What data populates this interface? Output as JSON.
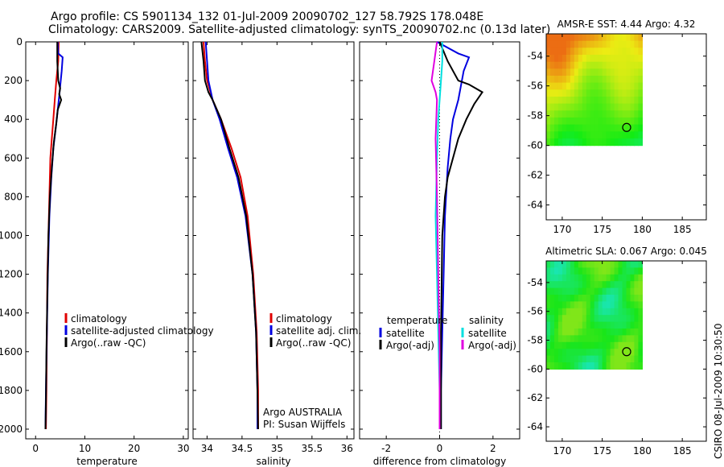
{
  "header": {
    "line1": "Argo profile: CS 5901134_132 01-Jul-2009 20090702_127 58.792S 178.048E",
    "line2": "Climatology: CARS2009. Satellite-adjusted climatology: synTS_20090702.nc (0.13d later)"
  },
  "footer": {
    "stamp": "CSIRO 08-Jul-2009 10:30:50",
    "credit_org": "Argo AUSTRALIA",
    "credit_pi": "PI: Susan Wijffels"
  },
  "colors": {
    "climatology": "#e00000",
    "satellite": "#0000e0",
    "argo": "#000000",
    "salinity_sat": "#00e0e0",
    "salinity_argo": "#e000e0"
  },
  "chart_data": [
    {
      "type": "line",
      "id": "temperature-panel",
      "xlabel": "temperature",
      "ylabel": "",
      "xlim": [
        -2,
        31
      ],
      "ylim": [
        2050,
        0
      ],
      "xticks": [
        0,
        10,
        20,
        30
      ],
      "yticks": [
        0,
        200,
        400,
        600,
        800,
        1000,
        1200,
        1400,
        1600,
        1800,
        2000
      ],
      "legend": [
        "climatology",
        "satellite-adjusted climatology",
        "Argo(..raw -QC)"
      ],
      "series": [
        {
          "name": "climatology",
          "color": "#e00000",
          "x": [
            4.7,
            4.6,
            4.2,
            3.9,
            3.6,
            3.3,
            3.0,
            2.8,
            2.6,
            2.4,
            2.3,
            2.2,
            2.1
          ],
          "y": [
            0,
            100,
            200,
            300,
            400,
            500,
            600,
            800,
            1000,
            1200,
            1500,
            1800,
            2000
          ]
        },
        {
          "name": "satellite-adjusted climatology",
          "color": "#0000e0",
          "x": [
            4.5,
            4.6,
            5.5,
            5.3,
            4.8,
            4.2,
            3.6,
            3.2,
            2.8,
            2.5,
            2.3,
            2.1,
            2.0
          ],
          "y": [
            0,
            60,
            80,
            150,
            280,
            420,
            550,
            700,
            900,
            1200,
            1500,
            1800,
            2000
          ]
        },
        {
          "name": "Argo(..raw -QC)",
          "color": "#000000",
          "x": [
            4.4,
            4.4,
            4.6,
            5.0,
            4.8,
            5.2,
            4.5,
            4.2,
            3.7,
            3.3,
            2.9,
            2.6,
            2.4,
            2.2,
            2.1,
            2.0
          ],
          "y": [
            0,
            100,
            200,
            240,
            270,
            300,
            350,
            420,
            520,
            650,
            800,
            1000,
            1300,
            1600,
            1850,
            2000
          ]
        }
      ]
    },
    {
      "type": "line",
      "id": "salinity-panel",
      "xlabel": "salinity",
      "ylabel": "",
      "xlim": [
        33.8,
        36.1
      ],
      "ylim": [
        2050,
        0
      ],
      "xticks": [
        34,
        34.5,
        35,
        35.5,
        36
      ],
      "legend": [
        "climatology",
        "satellite adj. clim.",
        "Argo(..raw -QC)"
      ],
      "series": [
        {
          "name": "climatology",
          "color": "#e00000",
          "x": [
            33.95,
            33.97,
            34.0,
            34.08,
            34.2,
            34.35,
            34.48,
            34.58,
            34.66,
            34.71,
            34.73,
            34.73
          ],
          "y": [
            0,
            100,
            200,
            300,
            400,
            550,
            700,
            900,
            1200,
            1500,
            1800,
            2000
          ]
        },
        {
          "name": "satellite adj. clim.",
          "color": "#0000e0",
          "x": [
            33.98,
            34.0,
            34.02,
            34.08,
            34.18,
            34.3,
            34.43,
            34.55,
            34.65,
            34.7,
            34.72,
            34.72
          ],
          "y": [
            0,
            100,
            200,
            300,
            400,
            550,
            700,
            900,
            1200,
            1500,
            1800,
            2000
          ]
        },
        {
          "name": "Argo(..raw -QC)",
          "color": "#000000",
          "x": [
            33.92,
            33.95,
            33.97,
            34.02,
            34.08,
            34.2,
            34.32,
            34.45,
            34.56,
            34.65,
            34.7,
            34.72,
            34.73
          ],
          "y": [
            0,
            100,
            200,
            260,
            300,
            400,
            550,
            700,
            900,
            1200,
            1500,
            1800,
            2000
          ]
        }
      ]
    },
    {
      "type": "line",
      "id": "difference-panel",
      "xlabel": "difference from climatology",
      "ylabel": "",
      "xlim": [
        -3,
        3
      ],
      "ylim": [
        2050,
        0
      ],
      "xticks": [
        -2,
        0,
        2
      ],
      "legend_temperature_title": "temperature",
      "legend_salinity_title": "salinity",
      "legend_temperature": [
        "satellite",
        "Argo(-adj)"
      ],
      "legend_salinity": [
        "satellite",
        "Argo(-adj)"
      ],
      "series": [
        {
          "name": "temperature satellite",
          "color": "#0000e0",
          "x": [
            -0.1,
            0.7,
            1.1,
            0.9,
            0.7,
            0.5,
            0.4,
            0.3,
            0.2,
            0.15,
            0.1,
            0.05,
            0.05
          ],
          "y": [
            0,
            60,
            80,
            150,
            300,
            400,
            500,
            650,
            900,
            1200,
            1500,
            1800,
            2000
          ]
        },
        {
          "name": "temperature Argo(-adj)",
          "color": "#000000",
          "x": [
            0,
            0.3,
            0.7,
            1.1,
            1.6,
            1.3,
            1.0,
            0.7,
            0.5,
            0.3,
            0.2,
            0.1,
            0.05,
            0.05
          ],
          "y": [
            0,
            100,
            200,
            220,
            260,
            320,
            400,
            500,
            600,
            700,
            800,
            1000,
            1500,
            2000
          ]
        },
        {
          "name": "salinity satellite",
          "color": "#00e0e0",
          "x": [
            0.1,
            0.1,
            0.05,
            0.0,
            -0.05,
            -0.1,
            -0.15,
            -0.1,
            -0.05,
            0.0,
            0.0
          ],
          "y": [
            0,
            100,
            200,
            300,
            400,
            600,
            900,
            1200,
            1500,
            1800,
            2000
          ]
        },
        {
          "name": "salinity Argo(-adj)",
          "color": "#e000e0",
          "x": [
            -0.1,
            -0.2,
            -0.3,
            -0.15,
            -0.1,
            -0.15,
            -0.1,
            -0.05,
            0.0,
            0.0
          ],
          "y": [
            0,
            100,
            200,
            260,
            300,
            500,
            800,
            1200,
            1600,
            2000
          ]
        }
      ]
    },
    {
      "type": "heatmap",
      "id": "sst-map",
      "title": "AMSR-E SST: 4.44  Argo: 4.32",
      "xlim": [
        168,
        188
      ],
      "ylim": [
        -65,
        -52.5
      ],
      "xticks": [
        170,
        175,
        180,
        185
      ],
      "yticks": [
        -54,
        -56,
        -58,
        -60,
        -62,
        -64
      ],
      "marker": {
        "lon": 178.048,
        "lat": -58.792
      },
      "field_extent": {
        "lon": [
          168,
          180
        ],
        "lat": [
          -60,
          -52.5
        ]
      }
    },
    {
      "type": "heatmap",
      "id": "sla-map",
      "title": "Altimetric SLA: 0.067  Argo: 0.045",
      "xlim": [
        168,
        188
      ],
      "ylim": [
        -65,
        -52.5
      ],
      "xticks": [
        170,
        175,
        180,
        185
      ],
      "yticks": [
        -54,
        -56,
        -58,
        -60,
        -62,
        -64
      ],
      "marker": {
        "lon": 178.048,
        "lat": -58.792
      },
      "field_extent": {
        "lon": [
          168,
          180
        ],
        "lat": [
          -60,
          -52.5
        ]
      }
    }
  ]
}
